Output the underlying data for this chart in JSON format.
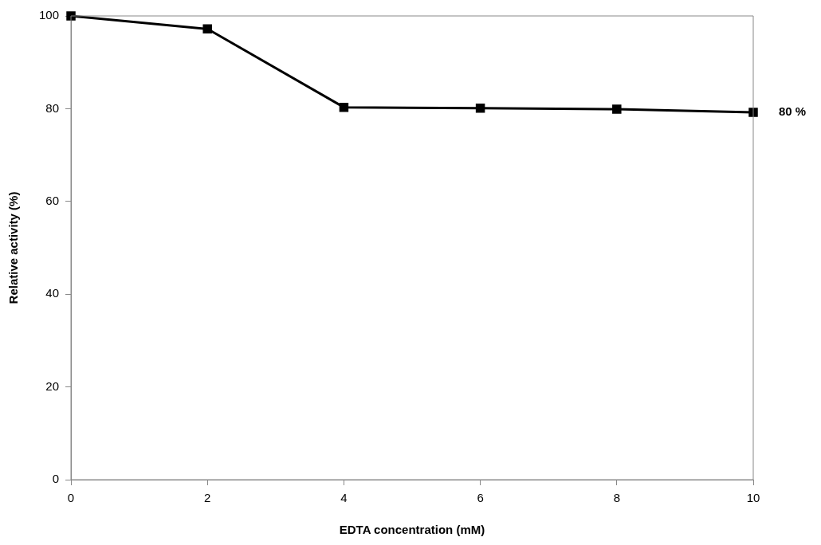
{
  "chart_data": {
    "type": "line",
    "xlabel": "EDTA concentration (mM)",
    "ylabel": "Relative activity (%)",
    "x": [
      0,
      2,
      4,
      6,
      8,
      10
    ],
    "series": [
      {
        "color": "#000000",
        "values": [
          100,
          97.2,
          80.3,
          80.1,
          79.9,
          79.2
        ]
      }
    ],
    "xlim": [
      0,
      10
    ],
    "xticks": [
      0,
      2,
      4,
      6,
      8,
      10
    ],
    "ylim": [
      0,
      100
    ],
    "yticks": [
      0,
      20,
      40,
      60,
      80,
      100
    ],
    "grid": false,
    "legend": false,
    "marker": "square",
    "line_style": "solid",
    "annotations": [
      {
        "text": "80 %",
        "x": 10,
        "y": 79.2
      }
    ]
  }
}
